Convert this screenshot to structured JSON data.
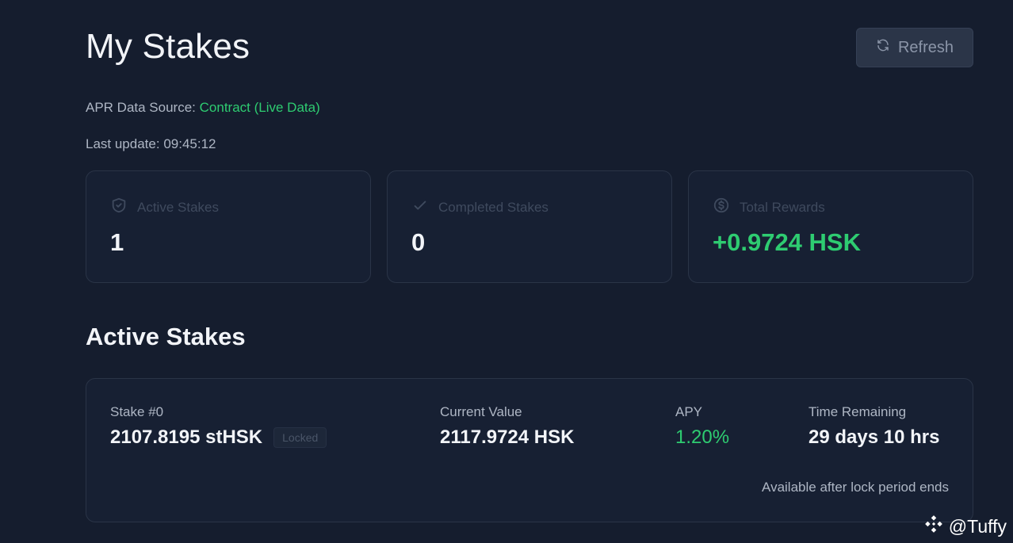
{
  "header": {
    "title": "My Stakes",
    "refresh_label": "Refresh"
  },
  "meta": {
    "apr_source_label": "APR Data Source:",
    "apr_source_value": "Contract (Live Data)",
    "last_update_label": "Last update:",
    "last_update_value": "09:45:12"
  },
  "stats": {
    "active": {
      "label": "Active Stakes",
      "value": "1",
      "icon": "shield-icon"
    },
    "completed": {
      "label": "Completed Stakes",
      "value": "0",
      "icon": "check-icon"
    },
    "rewards": {
      "label": "Total Rewards",
      "value": "+0.9724 HSK",
      "icon": "dollar-circle-icon"
    }
  },
  "active_section": {
    "title": "Active Stakes",
    "stake": {
      "name": "Stake #0",
      "amount": "2107.8195 stHSK",
      "status": "Locked",
      "current_value_label": "Current Value",
      "current_value": "2117.9724 HSK",
      "apy_label": "APY",
      "apy": "1.20%",
      "time_label": "Time Remaining",
      "time_value": "29 days 10 hrs",
      "note": "Available after lock period ends"
    }
  },
  "watermark": {
    "text": "@Tuffy"
  },
  "colors": {
    "background": "#151d2e",
    "accent_green": "#2ecc71",
    "card_border": "#2a3447"
  }
}
